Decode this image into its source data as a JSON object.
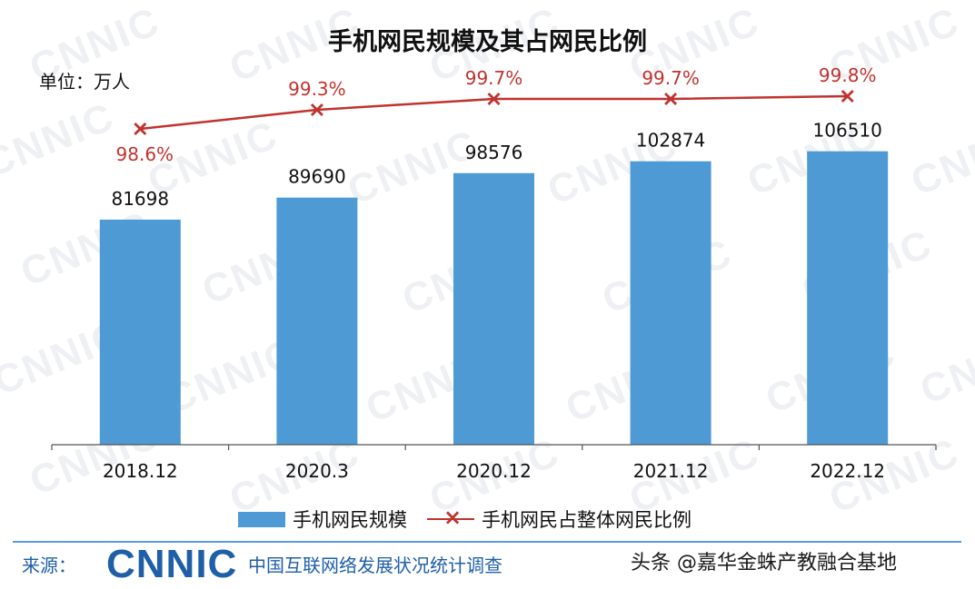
{
  "header": {
    "title": "手机网民规模及其占网民比例",
    "unit": "单位：万人"
  },
  "chart_data": {
    "type": "bar",
    "title": "手机网民规模及其占网民比例",
    "unit_label": "单位：万人",
    "categories": [
      "2018.12",
      "2020.3",
      "2020.12",
      "2021.12",
      "2022.12"
    ],
    "ylim": [
      0,
      112000
    ],
    "series": [
      {
        "name": "手机网民规模",
        "kind": "bar",
        "color": "#4e9ad4",
        "values": [
          81698,
          89690,
          98576,
          102874,
          106510
        ],
        "labels": [
          "81698",
          "89690",
          "98576",
          "102874",
          "106510"
        ]
      },
      {
        "name": "手机网民占整体网民比例",
        "kind": "line",
        "color": "#c0332e",
        "values": [
          98.6,
          99.3,
          99.7,
          99.7,
          99.8
        ],
        "labels": [
          "98.6%",
          "99.3%",
          "99.7%",
          "99.7%",
          "99.8%"
        ]
      }
    ],
    "grid": false,
    "legend_position": "bottom"
  },
  "legend": {
    "bar_label": "手机网民规模",
    "line_label": "手机网民占整体网民比例",
    "line_marker": "×"
  },
  "footer": {
    "source_label": "来源：",
    "brand": "CNNIC",
    "source_name": "中国互联网络发展状况统计调查",
    "attribution": "头条 @嘉华金蛛产教融合基地"
  },
  "watermark_text": "CNNIC"
}
